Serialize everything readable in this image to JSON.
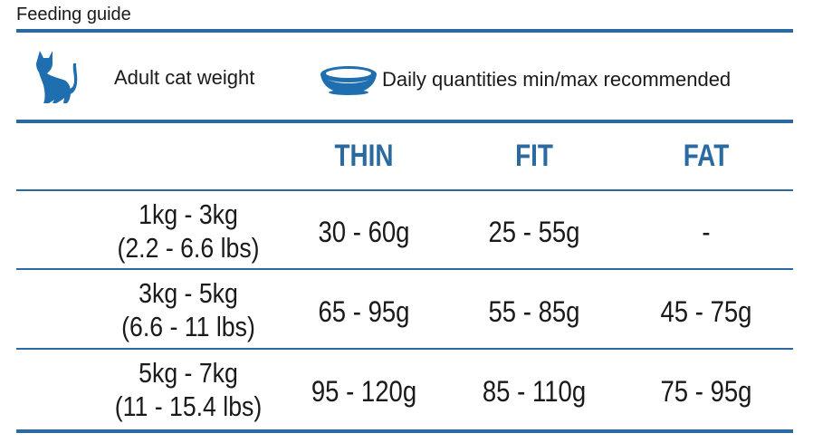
{
  "title": "Feeding guide",
  "header": {
    "weight_label": "Adult cat weight",
    "quantities_label": "Daily quantities min/max recommended",
    "cat_icon": "cat-silhouette-icon",
    "bowl_icon": "food-bowl-icon"
  },
  "columns": [
    "THIN",
    "FIT",
    "FAT"
  ],
  "rows": [
    {
      "weight_kg": "1kg - 3kg",
      "weight_lbs": "(2.2 - 6.6 lbs)",
      "thin": "30 - 60g",
      "fit": "25 - 55g",
      "fat": "-"
    },
    {
      "weight_kg": "3kg - 5kg",
      "weight_lbs": "(6.6 - 11 lbs)",
      "thin": "65 - 95g",
      "fit": "55 - 85g",
      "fat": "45 - 75g"
    },
    {
      "weight_kg": "5kg - 7kg",
      "weight_lbs": "(11 - 15.4 lbs)",
      "thin": "95 - 120g",
      "fit": "85 - 110g",
      "fat": "75 - 95g"
    }
  ],
  "colors": {
    "accent": "#2a6aa0",
    "icon": "#1f6fb0",
    "text": "#1a1a1a"
  }
}
